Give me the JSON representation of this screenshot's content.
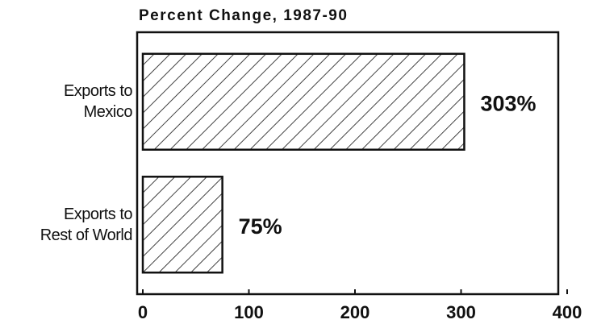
{
  "chart_data": {
    "type": "barh",
    "title": "Percent Change, 1987-90",
    "categories": [
      "Exports to\nMexico",
      "Exports to\nRest of World"
    ],
    "values": [
      303,
      75
    ],
    "value_labels": [
      "303%",
      "75%"
    ],
    "color": "#111111",
    "fill": "hatch",
    "xlim": [
      0,
      400
    ],
    "xticks": [
      0,
      100,
      200,
      300,
      400
    ],
    "grid": false
  }
}
